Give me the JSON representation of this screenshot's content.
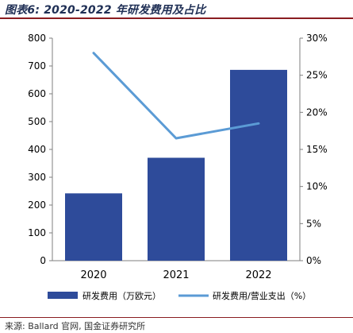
{
  "figure": {
    "title": "图表6: 2020-2022 年研发费用及占比",
    "source": "来源: Ballard 官网, 国金证券研究所"
  },
  "colors": {
    "bar": "#2e4b9a",
    "line": "#5b9bd5",
    "title": "#1f2f55",
    "rule": "#8a1d21",
    "axis": "#7f7f7f"
  },
  "chart_data": {
    "type": "bar",
    "categories": [
      "2020",
      "2021",
      "2022"
    ],
    "series": [
      {
        "name": "研发费用（万欧元）",
        "type": "bar",
        "axis": "left",
        "values": [
          242,
          370,
          686
        ]
      },
      {
        "name": "研发费用/营业支出（%）",
        "type": "line",
        "axis": "right",
        "values": [
          28,
          16.5,
          18.5
        ]
      }
    ],
    "y_left": {
      "min": 0,
      "max": 800,
      "ticks": [
        "0",
        "100",
        "200",
        "300",
        "400",
        "500",
        "600",
        "700",
        "800"
      ]
    },
    "y_right": {
      "min": 0,
      "max": 30,
      "ticks": [
        "0%",
        "5%",
        "10%",
        "15%",
        "20%",
        "25%",
        "30%"
      ]
    },
    "grid": false,
    "legend_position": "bottom"
  }
}
